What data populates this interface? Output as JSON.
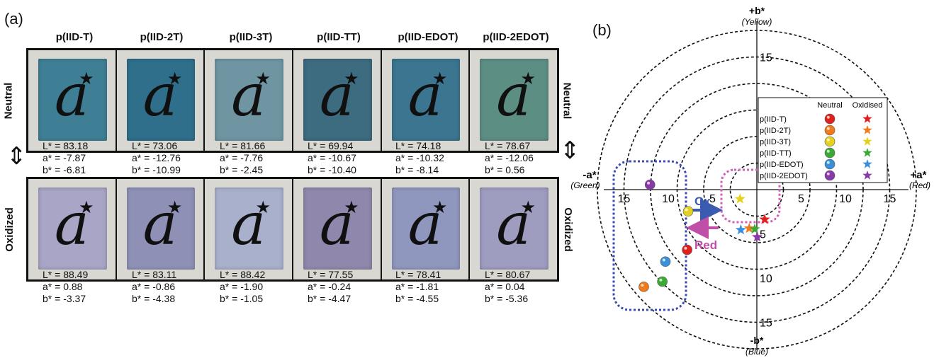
{
  "panel_a": {
    "label": "(a)",
    "columns": [
      "p(IID-T)",
      "p(IID-2T)",
      "p(IID-3T)",
      "p(IID-TT)",
      "p(IID-EDOT)",
      "p(IID-2EDOT)"
    ],
    "glyph": "a",
    "star": "★",
    "neutral_label": "Neutral",
    "oxidized_label": "Oxidized",
    "double_arrow": "⇕",
    "neutral_colors": [
      "#3f7f95",
      "#2f6f8c",
      "#6f95a3",
      "#3d6b80",
      "#3b7590",
      "#5d8e84"
    ],
    "oxidized_colors": [
      "#a8a5c6",
      "#8e90b6",
      "#a9b0cc",
      "#8f88ac",
      "#8f97bf",
      "#9e9cbf"
    ],
    "neutral_values": [
      {
        "L": "L* = 83.18",
        "a": "a* = -7.87",
        "b": "b* = -6.81"
      },
      {
        "L": "L* = 73.06",
        "a": "a* = -12.76",
        "b": "b* = -10.99"
      },
      {
        "L": "L* = 81.66",
        "a": "a* = -7.76",
        "b": "b* = -2.45"
      },
      {
        "L": "L* = 69.94",
        "a": "a* = -10.67",
        "b": "b* = -10.40"
      },
      {
        "L": "L* = 74.18",
        "a": "a* = -10.32",
        "b": "b* = -8.14"
      },
      {
        "L": "L* = 78.67",
        "a": "a* = -12.06",
        "b": "b* = 0.56"
      }
    ],
    "oxidized_values": [
      {
        "L": "L* = 88.49",
        "a": "a* = 0.88",
        "b": "b* = -3.37"
      },
      {
        "L": "L* = 83.11",
        "a": "a* = -0.86",
        "b": "b* = -4.38"
      },
      {
        "L": "L* = 88.42",
        "a": "a* = -1.90",
        "b": "b* = -1.05"
      },
      {
        "L": "L* = 77.55",
        "a": "a* = -0.24",
        "b": "b* = -4.47"
      },
      {
        "L": "L* = 78.41",
        "a": "a* = -1.81",
        "b": "b* = -4.55"
      },
      {
        "L": "L* = 80.67",
        "a": "a* = 0.04",
        "b": "b* = -5.36"
      }
    ]
  },
  "panel_b": {
    "label": "(b)",
    "axis": {
      "pos_b": "+b*",
      "pos_b_sub": "(Yellow)",
      "neg_b": "-b*",
      "neg_b_sub": "(Blue)",
      "pos_a": "+a*",
      "pos_a_sub": "(Red)",
      "neg_a": "-a*",
      "neg_a_sub": "(Green)"
    },
    "ring_ticks": [
      "5",
      "10",
      "15"
    ],
    "ox_label": "Ox",
    "red_label": "Red",
    "legend": {
      "neutral_header": "Neutral",
      "oxidised_header": "Oxidised",
      "entries": [
        "p(IID-T)",
        "p(IID-2T)",
        "p(IID-3T)",
        "p(IID-TT)",
        "p(IID-EDOT)",
        "p(IID-2EDOT)"
      ]
    }
  },
  "chart_data": {
    "type": "scatter",
    "coordinate_system": "polar (a*, b*) color space",
    "xlabel": "a*",
    "ylabel": "b*",
    "xlim": [
      -17,
      17
    ],
    "ylim": [
      -17,
      17
    ],
    "ring_radii": [
      3,
      6,
      9,
      12,
      15,
      18
    ],
    "series": [
      {
        "name": "p(IID-T)",
        "color": "#e0201c",
        "neutral": {
          "a": -7.87,
          "b": -6.81
        },
        "oxidised": {
          "a": 0.88,
          "b": -3.37
        }
      },
      {
        "name": "p(IID-2T)",
        "color": "#f07a1c",
        "neutral": {
          "a": -12.76,
          "b": -10.99
        },
        "oxidised": {
          "a": -0.86,
          "b": -4.38
        }
      },
      {
        "name": "p(IID-3T)",
        "color": "#e6d21e",
        "neutral": {
          "a": -7.76,
          "b": -2.45
        },
        "oxidised": {
          "a": -1.9,
          "b": -1.05
        }
      },
      {
        "name": "p(IID-TT)",
        "color": "#3aaa35",
        "neutral": {
          "a": -10.67,
          "b": -10.4
        },
        "oxidised": {
          "a": -0.24,
          "b": -4.47
        }
      },
      {
        "name": "p(IID-EDOT)",
        "color": "#3a8fd9",
        "neutral": {
          "a": -10.32,
          "b": -8.14
        },
        "oxidised": {
          "a": -1.81,
          "b": -4.55
        }
      },
      {
        "name": "p(IID-2EDOT)",
        "color": "#8a3aa8",
        "neutral": {
          "a": -12.06,
          "b": 0.56
        },
        "oxidised": {
          "a": 0.04,
          "b": -5.36
        }
      }
    ]
  }
}
